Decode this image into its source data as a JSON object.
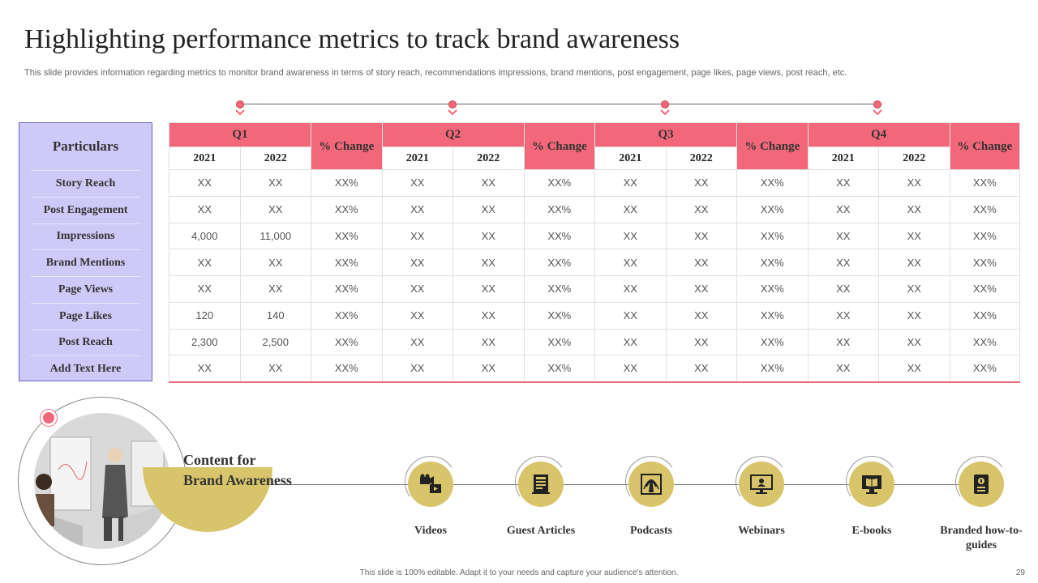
{
  "title": "Highlighting performance metrics to track brand awareness",
  "subtitle": "This slide provides information regarding metrics to monitor brand awareness in terms of story reach, recommendations impressions, brand mentions, post engagement, page likes, page views, post reach, etc.",
  "particulars": {
    "header": "Particulars",
    "rows": [
      "Story Reach",
      "Post Engagement",
      "Impressions",
      "Brand  Mentions",
      "Page Views",
      "Page Likes",
      "Post Reach",
      "Add Text Here"
    ]
  },
  "table": {
    "quarters": [
      "Q1",
      "Q2",
      "Q3",
      "Q4"
    ],
    "change_label": "% Change",
    "years": [
      "2021",
      "2022"
    ],
    "rows": [
      [
        "XX",
        "XX",
        "XX%",
        "XX",
        "XX",
        "XX%",
        "XX",
        "XX",
        "XX%",
        "XX",
        "XX",
        "XX%"
      ],
      [
        "XX",
        "XX",
        "XX%",
        "XX",
        "XX",
        "XX%",
        "XX",
        "XX",
        "XX%",
        "XX",
        "XX",
        "XX%"
      ],
      [
        "4,000",
        "11,000",
        "XX%",
        "XX",
        "XX",
        "XX%",
        "XX",
        "XX",
        "XX%",
        "XX",
        "XX",
        "XX%"
      ],
      [
        "XX",
        "XX",
        "XX%",
        "XX",
        "XX",
        "XX%",
        "XX",
        "XX",
        "XX%",
        "XX",
        "XX",
        "XX%"
      ],
      [
        "XX",
        "XX",
        "XX%",
        "XX",
        "XX",
        "XX%",
        "XX",
        "XX",
        "XX%",
        "XX",
        "XX",
        "XX%"
      ],
      [
        "120",
        "140",
        "XX%",
        "XX",
        "XX",
        "XX%",
        "XX",
        "XX",
        "XX%",
        "XX",
        "XX",
        "XX%"
      ],
      [
        "2,300",
        "2,500",
        "XX%",
        "XX",
        "XX",
        "XX%",
        "XX",
        "XX",
        "XX%",
        "XX",
        "XX",
        "XX%"
      ],
      [
        "XX",
        "XX",
        "XX%",
        "XX",
        "XX",
        "XX%",
        "XX",
        "XX",
        "XX%",
        "XX",
        "XX",
        "XX%"
      ]
    ]
  },
  "content": {
    "label_line1": "Content for",
    "label_line2": "Brand Awareness",
    "items": [
      {
        "label": "Videos",
        "icon": "video-camera-icon"
      },
      {
        "label": "Guest Articles",
        "icon": "article-icon"
      },
      {
        "label": "Podcasts",
        "icon": "podcast-icon"
      },
      {
        "label": "Webinars",
        "icon": "webinar-icon"
      },
      {
        "label": "E-books",
        "icon": "ebook-icon"
      },
      {
        "label": "Branded how-to-guides",
        "icon": "guide-book-icon"
      }
    ]
  },
  "footer": "This slide is 100% editable. Adapt it to your needs and capture your audience's attention.",
  "page_number": "29",
  "colors": {
    "accent": "#f3677a",
    "lavender": "#cfc9f7",
    "gold": "#d8c46a"
  }
}
